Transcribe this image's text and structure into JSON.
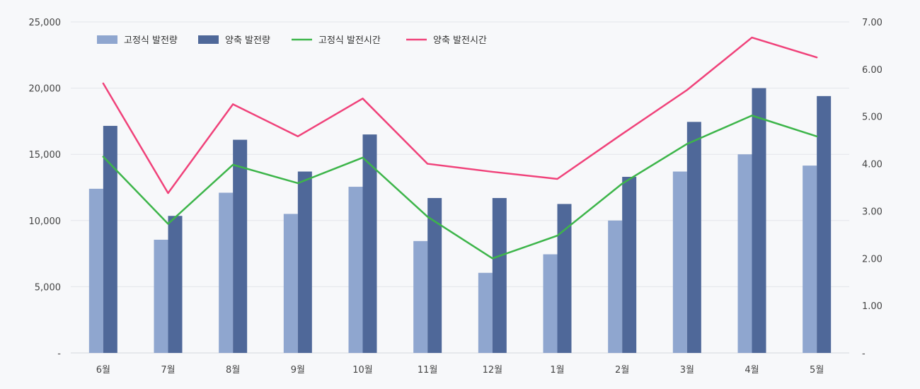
{
  "chart_data": {
    "type": "bar",
    "categories": [
      "6월",
      "7월",
      "8월",
      "9월",
      "10월",
      "11월",
      "12월",
      "1월",
      "2월",
      "3월",
      "4월",
      "5월"
    ],
    "series": [
      {
        "name": "고정식 발전량",
        "type": "bar",
        "axis": "left",
        "color": "#8fa6cf",
        "values": [
          12400,
          8550,
          12100,
          10500,
          12550,
          8450,
          6050,
          7450,
          10000,
          13700,
          15000,
          14150
        ]
      },
      {
        "name": "양축 발전량",
        "type": "bar",
        "axis": "left",
        "color": "#4f6899",
        "values": [
          17150,
          10350,
          16100,
          13700,
          16500,
          11700,
          11700,
          11250,
          13300,
          17450,
          20000,
          19400
        ]
      },
      {
        "name": "고정식 발전시간",
        "type": "line",
        "axis": "right",
        "color": "#3db54a",
        "values": [
          4.15,
          2.73,
          3.98,
          3.59,
          4.13,
          2.88,
          2.0,
          2.48,
          3.58,
          4.42,
          5.02,
          4.58
        ]
      },
      {
        "name": "양축 발전시간",
        "type": "line",
        "axis": "right",
        "color": "#f0427a",
        "values": [
          5.7,
          3.38,
          5.26,
          4.58,
          5.38,
          4.0,
          3.83,
          3.68,
          4.63,
          5.56,
          6.67,
          6.25
        ]
      }
    ],
    "y_left": {
      "range": [
        0,
        25000
      ],
      "ticks": [
        0,
        5000,
        10000,
        15000,
        20000,
        25000
      ],
      "tick_labels": [
        "-",
        "5,000",
        "10,000",
        "15,000",
        "20,000",
        "25,000"
      ]
    },
    "y_right": {
      "range": [
        0,
        7
      ],
      "ticks": [
        0,
        1,
        2,
        3,
        4,
        5,
        6,
        7
      ],
      "tick_labels": [
        "-",
        "1.00",
        "2.00",
        "3.00",
        "4.00",
        "5.00",
        "6.00",
        "7.00"
      ]
    },
    "grid": true,
    "legend": "top-left"
  }
}
